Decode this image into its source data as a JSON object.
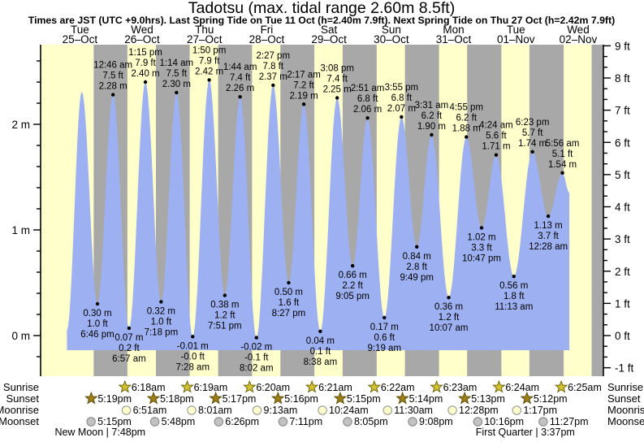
{
  "title": "Tadotsu (max. tidal range 2.60m 8.5ft)",
  "subtitle": "Times are JST (UTC +9.0hrs). Last Spring Tide on Tue 11 Oct (h=2.40m 7.9ft). Next Spring Tide on Thu 27 Oct (h=2.42m 7.9ft)",
  "day_labels": [
    {
      "name": "Tue",
      "date": "25–Oct"
    },
    {
      "name": "Wed",
      "date": "26–Oct"
    },
    {
      "name": "Thu",
      "date": "27–Oct"
    },
    {
      "name": "Fri",
      "date": "28–Oct"
    },
    {
      "name": "Sat",
      "date": "29–Oct"
    },
    {
      "name": "Sun",
      "date": "30–Oct"
    },
    {
      "name": "Mon",
      "date": "31–Oct"
    },
    {
      "name": "Tue",
      "date": "01–Nov"
    },
    {
      "name": "Wed",
      "date": "02–Nov"
    }
  ],
  "axes": {
    "left_ticks": [
      {
        "v": 0,
        "label": "0 m"
      },
      {
        "v": 1,
        "label": "1 m"
      },
      {
        "v": 2,
        "label": "2 m"
      }
    ],
    "right_ticks": [
      {
        "v": -1,
        "label": "-1 ft"
      },
      {
        "v": 0,
        "label": "0 ft"
      },
      {
        "v": 1,
        "label": "1 ft"
      },
      {
        "v": 2,
        "label": "2 ft"
      },
      {
        "v": 3,
        "label": "3 ft"
      },
      {
        "v": 4,
        "label": "4 ft"
      },
      {
        "v": 5,
        "label": "5 ft"
      },
      {
        "v": 6,
        "label": "6 ft"
      },
      {
        "v": 7,
        "label": "7 ft"
      },
      {
        "v": 8,
        "label": "8 ft"
      },
      {
        "v": 9,
        "label": "9 ft"
      }
    ]
  },
  "chart_data": {
    "type": "area",
    "title": "Tadotsu tide height curve",
    "x_unit": "hours since 25-Oct 00:00 JST",
    "ylim_m": [
      -0.39,
      2.75
    ],
    "baseline_m": -0.14,
    "events": [
      {
        "kind": "edge",
        "t": 7.0,
        "h": 0.05,
        "annotated": false
      },
      {
        "kind": "high",
        "t": 12.75,
        "h": 2.31,
        "annotated": false
      },
      {
        "kind": "low",
        "t": 18.767,
        "h": 0.3,
        "annotated": true,
        "m": "0.30 m",
        "ft": "1.0 ft",
        "time": "6:46 pm"
      },
      {
        "kind": "high",
        "t": 24.767,
        "h": 2.28,
        "annotated": true,
        "m": "2.28 m",
        "ft": "7.5 ft",
        "time": "12:46 am"
      },
      {
        "kind": "low",
        "t": 30.95,
        "h": 0.07,
        "annotated": true,
        "m": "0.07 m",
        "ft": "0.2 ft",
        "time": "6:57 am"
      },
      {
        "kind": "high",
        "t": 37.25,
        "h": 2.4,
        "annotated": true,
        "m": "2.40 m",
        "ft": "7.9 ft",
        "time": "1:15 pm"
      },
      {
        "kind": "low",
        "t": 43.3,
        "h": 0.32,
        "annotated": true,
        "m": "0.32 m",
        "ft": "1.0 ft",
        "time": "7:18 pm"
      },
      {
        "kind": "high",
        "t": 49.233,
        "h": 2.3,
        "annotated": true,
        "m": "2.30 m",
        "ft": "7.5 ft",
        "time": "1:14 am"
      },
      {
        "kind": "low",
        "t": 55.467,
        "h": -0.01,
        "annotated": true,
        "m": "-0.01 m",
        "ft": "-0.0 ft",
        "time": "7:28 am"
      },
      {
        "kind": "high",
        "t": 61.833,
        "h": 2.42,
        "annotated": true,
        "m": "2.42 m",
        "ft": "7.9 ft",
        "time": "1:50 pm"
      },
      {
        "kind": "low",
        "t": 67.85,
        "h": 0.38,
        "annotated": true,
        "m": "0.38 m",
        "ft": "1.2 ft",
        "time": "7:51 pm"
      },
      {
        "kind": "high",
        "t": 73.733,
        "h": 2.26,
        "annotated": true,
        "m": "2.26 m",
        "ft": "7.4 ft",
        "time": "1:44 am"
      },
      {
        "kind": "low",
        "t": 80.033,
        "h": -0.02,
        "annotated": true,
        "m": "-0.02 m",
        "ft": "-0.1 ft",
        "time": "8:02 am"
      },
      {
        "kind": "high",
        "t": 86.45,
        "h": 2.37,
        "annotated": true,
        "m": "2.37 m",
        "ft": "7.8 ft",
        "time": "2:27 pm"
      },
      {
        "kind": "low",
        "t": 92.45,
        "h": 0.5,
        "annotated": true,
        "m": "0.50 m",
        "ft": "1.6 ft",
        "time": "8:27 pm"
      },
      {
        "kind": "high",
        "t": 98.283,
        "h": 2.19,
        "annotated": true,
        "m": "2.19 m",
        "ft": "7.2 ft",
        "time": "2:17 am"
      },
      {
        "kind": "low",
        "t": 104.633,
        "h": 0.04,
        "annotated": true,
        "m": "0.04 m",
        "ft": "0.1 ft",
        "time": "8:38 am"
      },
      {
        "kind": "high",
        "t": 111.133,
        "h": 2.25,
        "annotated": true,
        "m": "2.25 m",
        "ft": "7.4 ft",
        "time": "3:08 pm"
      },
      {
        "kind": "low",
        "t": 117.083,
        "h": 0.66,
        "annotated": true,
        "m": "0.66 m",
        "ft": "2.2 ft",
        "time": "9:05 pm"
      },
      {
        "kind": "high",
        "t": 122.85,
        "h": 2.06,
        "annotated": true,
        "m": "2.06 m",
        "ft": "6.8 ft",
        "time": "2:51 am"
      },
      {
        "kind": "low",
        "t": 129.317,
        "h": 0.17,
        "annotated": true,
        "m": "0.17 m",
        "ft": "0.6 ft",
        "time": "9:19 am"
      },
      {
        "kind": "high",
        "t": 135.917,
        "h": 2.07,
        "annotated": true,
        "m": "2.07 m",
        "ft": "6.8 ft",
        "time": "3:55 pm"
      },
      {
        "kind": "low",
        "t": 141.817,
        "h": 0.84,
        "annotated": true,
        "m": "0.84 m",
        "ft": "2.8 ft",
        "time": "9:49 pm"
      },
      {
        "kind": "high",
        "t": 147.517,
        "h": 1.9,
        "annotated": true,
        "m": "1.90 m",
        "ft": "6.2 ft",
        "time": "3:31 am"
      },
      {
        "kind": "low",
        "t": 154.117,
        "h": 0.36,
        "annotated": true,
        "m": "0.36 m",
        "ft": "1.2 ft",
        "time": "10:07 am"
      },
      {
        "kind": "high",
        "t": 160.917,
        "h": 1.88,
        "annotated": true,
        "m": "1.88 m",
        "ft": "6.2 ft",
        "time": "4:55 pm"
      },
      {
        "kind": "low",
        "t": 166.783,
        "h": 1.02,
        "annotated": true,
        "m": "1.02 m",
        "ft": "3.3 ft",
        "time": "10:47 pm"
      },
      {
        "kind": "high",
        "t": 172.4,
        "h": 1.71,
        "annotated": true,
        "m": "1.71 m",
        "ft": "5.6 ft",
        "time": "4:24 am"
      },
      {
        "kind": "low",
        "t": 179.217,
        "h": 0.56,
        "annotated": true,
        "m": "0.56 m",
        "ft": "1.8 ft",
        "time": "11:13 am"
      },
      {
        "kind": "high",
        "t": 186.383,
        "h": 1.74,
        "annotated": true,
        "m": "1.74 m",
        "ft": "5.7 ft",
        "time": "6:23 pm"
      },
      {
        "kind": "low",
        "t": 192.467,
        "h": 1.13,
        "annotated": true,
        "m": "1.13 m",
        "ft": "3.7 ft",
        "time": "12:28 am"
      },
      {
        "kind": "high",
        "t": 197.933,
        "h": 1.54,
        "annotated": true,
        "m": "1.54 m",
        "ft": "5.1 ft",
        "time": "5:56 am"
      },
      {
        "kind": "edge",
        "t": 200.6,
        "h": 1.35,
        "annotated": false
      }
    ]
  },
  "almanac": {
    "rows": [
      {
        "label": "Sunrise",
        "icon": "sunrise-icon",
        "shape": "star",
        "fill": "#d2c231",
        "edge": "#6f650f",
        "events": [
          {
            "time": "6:18am",
            "t": 30.3
          },
          {
            "time": "6:19am",
            "t": 54.317
          },
          {
            "time": "6:20am",
            "t": 78.333
          },
          {
            "time": "6:21am",
            "t": 102.35
          },
          {
            "time": "6:22am",
            "t": 126.367
          },
          {
            "time": "6:23am",
            "t": 150.383
          },
          {
            "time": "6:24am",
            "t": 174.4
          },
          {
            "time": "6:25am",
            "t": 198.417
          }
        ]
      },
      {
        "label": "Sunset",
        "icon": "sunset-icon",
        "shape": "star",
        "fill": "#9b7f17",
        "edge": "#5f4e0c",
        "events": [
          {
            "time": "5:19pm",
            "t": 17.317
          },
          {
            "time": "5:18pm",
            "t": 41.3
          },
          {
            "time": "5:17pm",
            "t": 65.283
          },
          {
            "time": "5:16pm",
            "t": 89.267
          },
          {
            "time": "5:15pm",
            "t": 113.25
          },
          {
            "time": "5:14pm",
            "t": 137.233
          },
          {
            "time": "5:13pm",
            "t": 161.217
          },
          {
            "time": "5:12pm",
            "t": 185.2
          }
        ]
      },
      {
        "label": "Moonrise",
        "icon": "moonrise-icon",
        "shape": "circle",
        "fill": "#ffffcc",
        "edge": "#999999",
        "events": [
          {
            "time": "6:51am",
            "t": 30.85
          },
          {
            "time": "8:01am",
            "t": 56.017
          },
          {
            "time": "9:13am",
            "t": 81.217
          },
          {
            "time": "10:24am",
            "t": 106.4
          },
          {
            "time": "11:30am",
            "t": 131.5
          },
          {
            "time": "12:28pm",
            "t": 156.467
          },
          {
            "time": "1:17pm",
            "t": 181.283
          }
        ]
      },
      {
        "label": "Moonset",
        "icon": "moonset-icon",
        "shape": "circle",
        "fill": "#c2c2c2",
        "edge": "#8a8a8a",
        "events": [
          {
            "time": "5:15pm",
            "t": 17.25
          },
          {
            "time": "5:48pm",
            "t": 41.8
          },
          {
            "time": "6:26pm",
            "t": 66.433
          },
          {
            "time": "7:11pm",
            "t": 91.183
          },
          {
            "time": "8:05pm",
            "t": 116.083
          },
          {
            "time": "9:08pm",
            "t": 141.133
          },
          {
            "time": "10:16pm",
            "t": 166.267
          },
          {
            "time": "11:27pm",
            "t": 191.45
          }
        ]
      }
    ],
    "phases": [
      {
        "label": "New Moon | 7:48pm",
        "t": 19.8
      },
      {
        "label": "First Quarter | 3:37pm",
        "t": 183.62
      }
    ]
  },
  "colors": {
    "day_band": "#ffffcc",
    "night_band": "#a8a8a8",
    "tide_fill": "#9db0f2",
    "date_label": "#ee0000",
    "text": "#000000"
  }
}
